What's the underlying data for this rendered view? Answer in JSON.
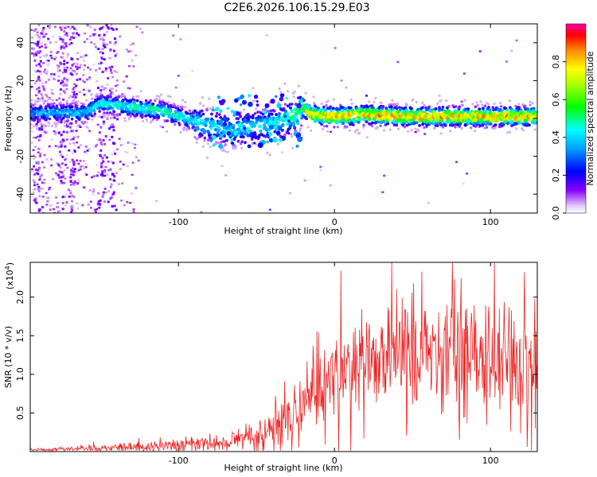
{
  "title": "C2E6.2026.106.15.29.E03",
  "colors": {
    "line": "#ee2222",
    "frame": "#000000"
  },
  "chart_data": [
    {
      "type": "heatmap",
      "name": "spectrogram",
      "xlabel": "Height of straight line (km)",
      "ylabel": "Frequency (Hz)",
      "xlim": [
        -195,
        130
      ],
      "ylim": [
        -50,
        50
      ],
      "xticks": [
        -100,
        0,
        100
      ],
      "xtick_labels": [
        "-100",
        "0",
        "100"
      ],
      "yticks": [
        -40,
        -20,
        0,
        20,
        40
      ],
      "ytick_labels": [
        "-40",
        "-20",
        "0",
        "20",
        "40"
      ],
      "colorbar": {
        "label": "Normalized spectral amplitude",
        "range": [
          0,
          1
        ],
        "ticks": [
          0.0,
          0.2,
          0.4,
          0.6,
          0.8
        ],
        "tick_labels": [
          "0.0",
          "0.2",
          "0.4",
          "0.6",
          "0.8"
        ]
      },
      "ridge": {
        "x": [
          -195,
          -160,
          -150,
          -130,
          -110,
          -95,
          -80,
          -65,
          -50,
          -35,
          -25,
          -20,
          -15,
          0,
          20,
          50,
          80,
          110,
          130
        ],
        "freq": [
          3,
          3,
          8,
          6,
          4,
          0,
          -4,
          -6,
          -4,
          -2,
          2,
          6,
          2,
          1,
          2,
          1,
          1,
          1,
          1
        ],
        "amplitude": [
          0.4,
          0.45,
          0.5,
          0.55,
          0.55,
          0.5,
          0.45,
          0.45,
          0.45,
          0.5,
          0.6,
          0.7,
          0.85,
          0.88,
          0.9,
          0.9,
          0.9,
          0.9,
          0.9
        ]
      }
    },
    {
      "type": "line",
      "name": "snr",
      "xlabel": "Height of straight line (km)",
      "ylabel": "SNR (10 * v/v)",
      "y_multiplier": "(x10",
      "y_multiplier_exp": "4",
      "y_multiplier_close": ")",
      "xlim": [
        -195,
        130
      ],
      "ylim": [
        0,
        2.45
      ],
      "xticks": [
        -100,
        0,
        100
      ],
      "xtick_labels": [
        "-100",
        "0",
        "100"
      ],
      "yticks": [
        0.5,
        1.0,
        1.5,
        2.0
      ],
      "ytick_labels": [
        "0.5",
        "1.0",
        "1.5",
        "2.0"
      ],
      "trend": {
        "x": [
          -195,
          -150,
          -120,
          -90,
          -70,
          -50,
          -40,
          -30,
          -20,
          -10,
          0,
          10,
          20,
          40,
          60,
          80,
          100,
          130
        ],
        "y": [
          0.02,
          0.04,
          0.07,
          0.1,
          0.13,
          0.2,
          0.32,
          0.45,
          0.65,
          0.8,
          0.9,
          1.0,
          1.15,
          1.25,
          1.3,
          1.25,
          1.2,
          1.15
        ]
      },
      "noise": {
        "x": [
          -195,
          -150,
          -100,
          -60,
          -40,
          -20,
          0,
          40,
          80,
          130
        ],
        "amp": [
          0.01,
          0.02,
          0.05,
          0.07,
          0.15,
          0.25,
          0.3,
          0.35,
          0.4,
          0.4
        ]
      }
    }
  ]
}
